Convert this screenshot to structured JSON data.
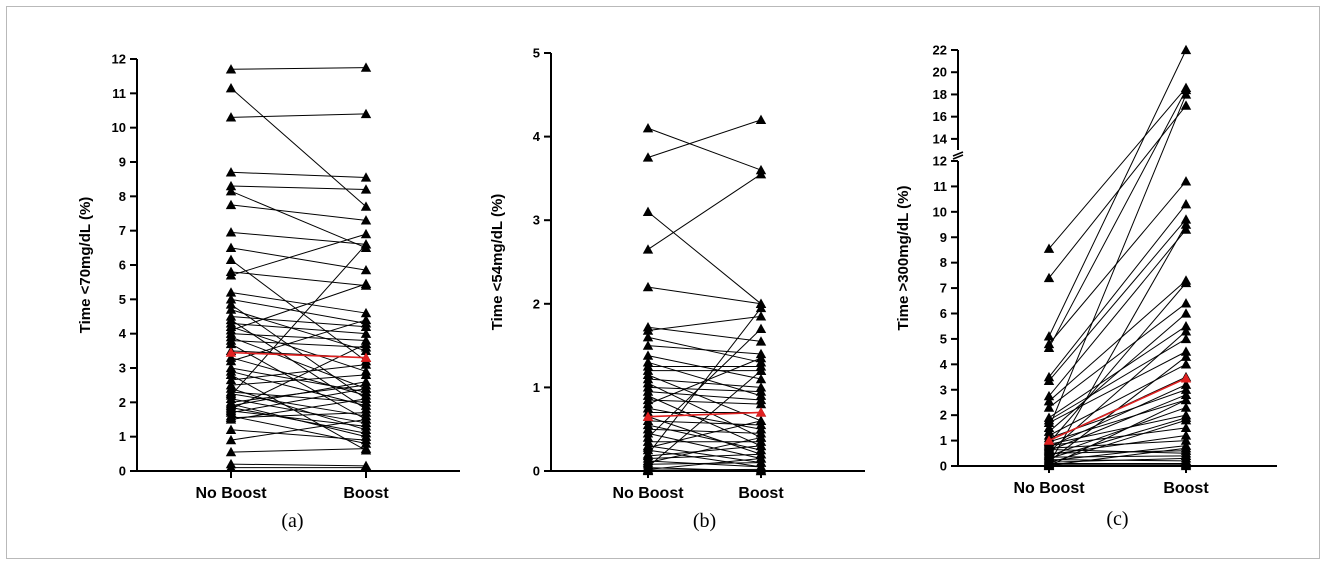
{
  "colors": {
    "lines": "#000000",
    "mean": "#e02020"
  },
  "chart_data": [
    {
      "type": "line",
      "panel_label": "(a)",
      "ylabel": "Time <70mg/dL (%)",
      "categories": [
        "No Boost",
        "Boost"
      ],
      "ylim": [
        0,
        12
      ],
      "yticks": [
        "0",
        "1",
        "2",
        "3",
        "4",
        "5",
        "6",
        "7",
        "8",
        "9",
        "10",
        "11",
        "12"
      ],
      "pairs": [
        [
          11.7,
          11.75
        ],
        [
          11.15,
          7.7
        ],
        [
          10.3,
          10.4
        ],
        [
          8.7,
          8.55
        ],
        [
          8.3,
          8.2
        ],
        [
          8.15,
          6.5
        ],
        [
          7.75,
          7.3
        ],
        [
          6.95,
          6.6
        ],
        [
          6.5,
          5.85
        ],
        [
          6.15,
          3.2
        ],
        [
          5.8,
          5.4
        ],
        [
          5.7,
          6.9
        ],
        [
          5.2,
          4.6
        ],
        [
          5.0,
          4.3
        ],
        [
          4.85,
          2.1
        ],
        [
          4.7,
          3.5
        ],
        [
          4.5,
          4.2
        ],
        [
          4.4,
          1.8
        ],
        [
          4.3,
          4.0
        ],
        [
          4.2,
          2.9
        ],
        [
          4.1,
          5.45
        ],
        [
          4.0,
          3.8
        ],
        [
          3.9,
          2.4
        ],
        [
          3.8,
          3.6
        ],
        [
          3.7,
          1.5
        ],
        [
          3.5,
          3.3
        ],
        [
          3.3,
          2.2
        ],
        [
          3.2,
          4.4
        ],
        [
          3.0,
          2.3
        ],
        [
          2.9,
          1.9
        ],
        [
          2.8,
          0.6
        ],
        [
          2.65,
          3.1
        ],
        [
          2.5,
          2.8
        ],
        [
          2.4,
          1.2
        ],
        [
          2.3,
          2.0
        ],
        [
          2.25,
          1.6
        ],
        [
          2.2,
          6.6
        ],
        [
          2.1,
          1.4
        ],
        [
          2.0,
          2.5
        ],
        [
          1.95,
          1.0
        ],
        [
          1.9,
          2.6
        ],
        [
          1.85,
          1.1
        ],
        [
          1.8,
          3.7
        ],
        [
          1.75,
          1.3
        ],
        [
          1.7,
          2.4
        ],
        [
          1.6,
          0.8
        ],
        [
          1.55,
          1.7
        ],
        [
          1.5,
          2.1
        ],
        [
          1.2,
          0.9
        ],
        [
          0.9,
          1.5
        ],
        [
          0.55,
          0.65
        ],
        [
          0.2,
          0.15
        ],
        [
          0.1,
          0.1
        ]
      ],
      "mean_pair": [
        3.45,
        3.3
      ]
    },
    {
      "type": "line",
      "panel_label": "(b)",
      "ylabel": "Time <54mg/dL (%)",
      "categories": [
        "No Boost",
        "Boost"
      ],
      "ylim": [
        0,
        5
      ],
      "yticks": [
        "0",
        "1",
        "2",
        "3",
        "4",
        "5"
      ],
      "pairs": [
        [
          4.1,
          3.6
        ],
        [
          3.75,
          4.2
        ],
        [
          3.1,
          2.0
        ],
        [
          2.65,
          3.55
        ],
        [
          2.2,
          2.0
        ],
        [
          1.72,
          1.55
        ],
        [
          1.68,
          1.85
        ],
        [
          1.6,
          1.3
        ],
        [
          1.5,
          1.4
        ],
        [
          1.38,
          1.1
        ],
        [
          1.3,
          0.9
        ],
        [
          1.25,
          1.25
        ],
        [
          1.2,
          1.2
        ],
        [
          1.15,
          0.6
        ],
        [
          1.1,
          1.0
        ],
        [
          1.05,
          0.4
        ],
        [
          1.0,
          0.95
        ],
        [
          0.95,
          0.85
        ],
        [
          0.9,
          0.3
        ],
        [
          0.85,
          0.8
        ],
        [
          0.8,
          1.35
        ],
        [
          0.75,
          0.5
        ],
        [
          0.7,
          0.7
        ],
        [
          0.65,
          0.2
        ],
        [
          0.6,
          0.55
        ],
        [
          0.55,
          0.25
        ],
        [
          0.5,
          0.45
        ],
        [
          0.45,
          0.15
        ],
        [
          0.4,
          1.7
        ],
        [
          0.35,
          0.35
        ],
        [
          0.3,
          0.1
        ],
        [
          0.28,
          0.6
        ],
        [
          0.25,
          0.05
        ],
        [
          0.2,
          1.95
        ],
        [
          0.18,
          0.3
        ],
        [
          0.15,
          0.2
        ],
        [
          0.12,
          0.05
        ],
        [
          0.1,
          0.4
        ],
        [
          0.08,
          0.1
        ],
        [
          0.05,
          1.2
        ],
        [
          0.04,
          0.0
        ],
        [
          0.02,
          0.15
        ],
        [
          0.01,
          0.02
        ],
        [
          0.0,
          0.0
        ]
      ],
      "mean_pair": [
        0.65,
        0.7
      ]
    },
    {
      "type": "line",
      "panel_label": "(c)",
      "ylabel": "Time >300mg/dL (%)",
      "categories": [
        "No Boost",
        "Boost"
      ],
      "ylim": [
        0,
        22
      ],
      "axis_break": [
        12,
        13
      ],
      "yticks": [
        "0",
        "1",
        "2",
        "3",
        "4",
        "5",
        "6",
        "7",
        "8",
        "9",
        "10",
        "11",
        "12",
        "14",
        "16",
        "18",
        "20",
        "22"
      ],
      "pairs": [
        [
          8.55,
          18.6
        ],
        [
          7.4,
          17.0
        ],
        [
          5.1,
          22.0
        ],
        [
          4.8,
          11.2
        ],
        [
          4.65,
          18.4
        ],
        [
          3.5,
          10.3
        ],
        [
          3.35,
          9.7
        ],
        [
          2.75,
          9.3
        ],
        [
          2.55,
          7.3
        ],
        [
          2.3,
          6.4
        ],
        [
          1.9,
          5.5
        ],
        [
          1.8,
          5.0
        ],
        [
          1.7,
          4.5
        ],
        [
          1.5,
          18.0
        ],
        [
          1.35,
          6.0
        ],
        [
          1.2,
          4.0
        ],
        [
          1.1,
          3.0
        ],
        [
          1.0,
          3.5
        ],
        [
          0.95,
          2.6
        ],
        [
          0.9,
          7.2
        ],
        [
          0.85,
          2.0
        ],
        [
          0.8,
          1.5
        ],
        [
          0.75,
          3.2
        ],
        [
          0.7,
          1.0
        ],
        [
          0.65,
          0.5
        ],
        [
          0.6,
          2.8
        ],
        [
          0.55,
          5.3
        ],
        [
          0.5,
          0.6
        ],
        [
          0.45,
          1.2
        ],
        [
          0.4,
          2.3
        ],
        [
          0.35,
          0.4
        ],
        [
          0.3,
          1.9
        ],
        [
          0.25,
          0.2
        ],
        [
          0.2,
          0.8
        ],
        [
          0.18,
          4.3
        ],
        [
          0.15,
          0.3
        ],
        [
          0.12,
          1.8
        ],
        [
          0.1,
          0.1
        ],
        [
          0.08,
          9.5
        ],
        [
          0.05,
          0.05
        ],
        [
          0.03,
          0.7
        ],
        [
          0.02,
          0.0
        ],
        [
          0.0,
          2.6
        ]
      ],
      "mean_pair": [
        1.0,
        3.45
      ]
    }
  ]
}
